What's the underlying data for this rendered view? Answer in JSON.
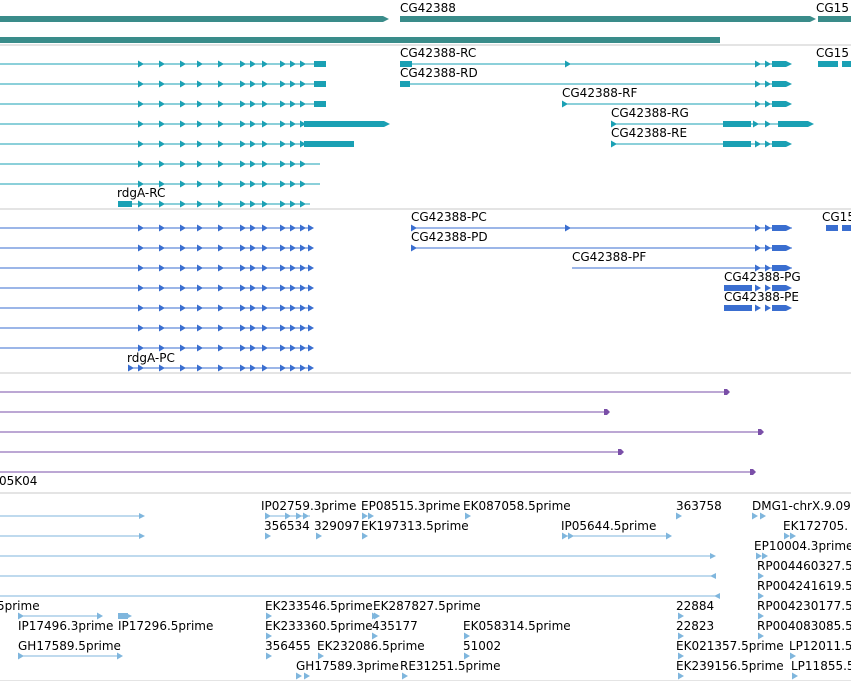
{
  "colors": {
    "gene": "#3a8c8a",
    "transcript": "#1aa0b4",
    "protein": "#3a6ed0",
    "ests": "#7a4fa8",
    "cdna": "#7fb6dd",
    "divider": "#c8c8c8"
  },
  "gene_track": {
    "labels": [
      "CG42388",
      "CG15"
    ]
  },
  "transcript_track": {
    "labels": [
      "CG42388-RC",
      "CG42388-RD",
      "CG42388-RF",
      "CG42388-RG",
      "CG42388-RE",
      "rdgA-RC",
      "CG15"
    ]
  },
  "protein_track": {
    "labels": [
      "CG42388-PC",
      "CG42388-PD",
      "CG42388-PF",
      "CG42388-PG",
      "CG42388-PE",
      "rdgA-PC",
      "CG15"
    ]
  },
  "ests_track": {
    "labels": [
      "05K04"
    ]
  },
  "cdna_track": {
    "labels": [
      "IP02759.3prime",
      "EP08515.3prime",
      "EK087058.5prime",
      "363758",
      "DMG1-chrX.9.09",
      "356534",
      "329097",
      "EK197313.5prime",
      "IP05644.5prime",
      "EK172705.",
      "EP10004.3prime",
      "RP004460327.5",
      "RP004241619.5",
      "5prime",
      "EK233546.5prime",
      "EK287827.5prime",
      "22884",
      "RP004230177.5",
      "IP17496.3prime",
      "IP17296.5prime",
      "EK233360.5prime",
      "435177",
      "EK058314.5prime",
      "22823",
      "RP004083085.5",
      "GH17589.5prime",
      "356455",
      "EK232086.5prime",
      "51002",
      "EK021357.5prime",
      "LP12011.5",
      "GH17589.3prime",
      "RE31251.5prime",
      "EK239156.5prime",
      "LP11855.5"
    ]
  }
}
